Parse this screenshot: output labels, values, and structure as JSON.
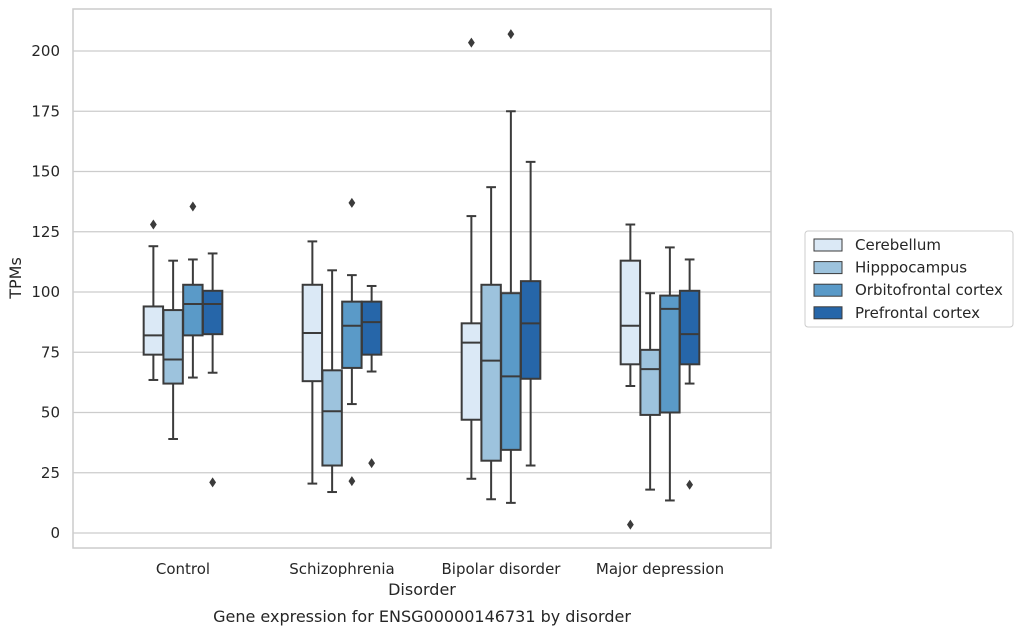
{
  "chart_data": {
    "type": "box",
    "title": "",
    "caption": "Gene expression for ENSG00000146731 by disorder",
    "xlabel": "Disorder",
    "ylabel": "TPMs",
    "ylim": [
      -6,
      218
    ],
    "yticks": [
      0,
      25,
      50,
      75,
      100,
      125,
      150,
      175,
      200
    ],
    "grid": true,
    "legend_position": "right",
    "categories": [
      "Control",
      "Schizophrenia",
      "Bipolar disorder",
      "Major depression"
    ],
    "series": [
      {
        "name": "Cerebellum",
        "color": "#dbe9f6",
        "boxes": [
          {
            "whisker_low": 63.5,
            "q1": 74,
            "median": 82,
            "q3": 94,
            "whisker_high": 119,
            "outliers": [
              128
            ]
          },
          {
            "whisker_low": 20.5,
            "q1": 63,
            "median": 83,
            "q3": 103,
            "whisker_high": 121,
            "outliers": []
          },
          {
            "whisker_low": 22.5,
            "q1": 47,
            "median": 79,
            "q3": 87,
            "whisker_high": 131.5,
            "outliers": [
              203.5
            ]
          },
          {
            "whisker_low": 61,
            "q1": 70,
            "median": 86,
            "q3": 113,
            "whisker_high": 128,
            "outliers": [
              3.5
            ]
          }
        ]
      },
      {
        "name": "Hipppocampus",
        "color": "#9dc3dd",
        "boxes": [
          {
            "whisker_low": 39,
            "q1": 62,
            "median": 72,
            "q3": 92.5,
            "whisker_high": 113,
            "outliers": []
          },
          {
            "whisker_low": 17,
            "q1": 28,
            "median": 50.5,
            "q3": 67.5,
            "whisker_high": 109,
            "outliers": []
          },
          {
            "whisker_low": 14,
            "q1": 30,
            "median": 71.5,
            "q3": 103,
            "whisker_high": 143.5,
            "outliers": []
          },
          {
            "whisker_low": 18,
            "q1": 49,
            "median": 68,
            "q3": 76,
            "whisker_high": 99.5,
            "outliers": []
          }
        ]
      },
      {
        "name": "Orbitofrontal cortex",
        "color": "#5a9ac8",
        "boxes": [
          {
            "whisker_low": 64.5,
            "q1": 82,
            "median": 95,
            "q3": 103,
            "whisker_high": 113.5,
            "outliers": [
              135.5
            ]
          },
          {
            "whisker_low": 53.5,
            "q1": 68.5,
            "median": 86,
            "q3": 96,
            "whisker_high": 107,
            "outliers": [
              21.5,
              137
            ]
          },
          {
            "whisker_low": 12.5,
            "q1": 34.5,
            "median": 65,
            "q3": 99.5,
            "whisker_high": 175,
            "outliers": [
              207
            ]
          },
          {
            "whisker_low": 13.5,
            "q1": 50,
            "median": 93,
            "q3": 98.5,
            "whisker_high": 118.5,
            "outliers": []
          }
        ]
      },
      {
        "name": "Prefrontal cortex",
        "color": "#2666a9",
        "boxes": [
          {
            "whisker_low": 66.5,
            "q1": 82.5,
            "median": 95,
            "q3": 100.5,
            "whisker_high": 116,
            "outliers": [
              21
            ]
          },
          {
            "whisker_low": 67,
            "q1": 74,
            "median": 87.5,
            "q3": 96,
            "whisker_high": 102.5,
            "outliers": [
              29
            ]
          },
          {
            "whisker_low": 28,
            "q1": 64,
            "median": 87,
            "q3": 104.5,
            "whisker_high": 154,
            "outliers": []
          },
          {
            "whisker_low": 62,
            "q1": 70,
            "median": 82.5,
            "q3": 100.5,
            "whisker_high": 113.5,
            "outliers": [
              20
            ]
          }
        ]
      }
    ]
  }
}
